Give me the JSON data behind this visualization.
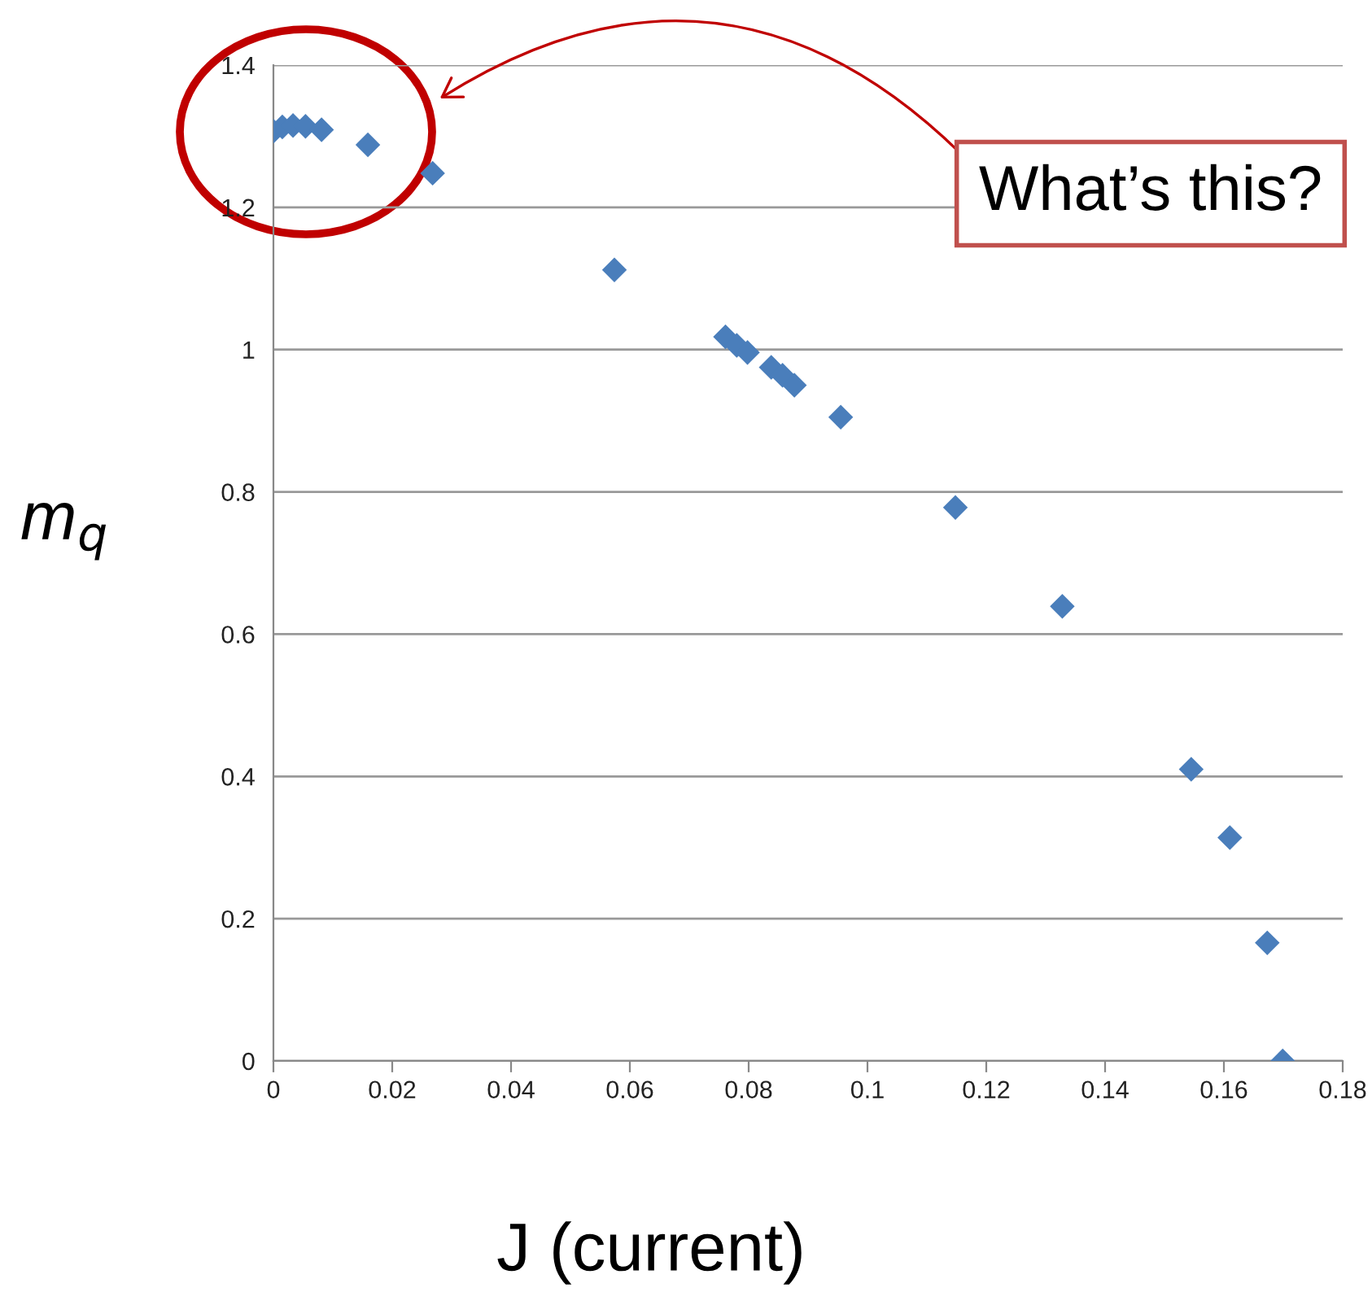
{
  "chart_data": {
    "type": "scatter",
    "xlabel": "J (current)",
    "ylabel": "m$_{q}$",
    "annotations": [
      "What’s this?"
    ],
    "x": [
      0,
      0.0015,
      0.0033,
      0.0054,
      0.0081,
      0.0159,
      0.0268,
      0.0574,
      0.0761,
      0.078,
      0.0798,
      0.0838,
      0.0857,
      0.0877,
      0.0955,
      0.1148,
      0.1328,
      0.1545,
      0.161,
      0.1673,
      0.1699
    ],
    "values": [
      1.307,
      1.313,
      1.315,
      1.314,
      1.309,
      1.288,
      1.248,
      1.112,
      1.018,
      1.006,
      0.996,
      0.975,
      0.964,
      0.95,
      0.905,
      0.778,
      0.639,
      0.41,
      0.314,
      0.166,
      0
    ],
    "color": "#4a7ebb",
    "marker": "diamond",
    "xlim": [
      0,
      0.18
    ],
    "xticks": [
      0,
      0.02,
      0.04,
      0.06,
      0.08,
      0.1,
      0.12,
      0.14,
      0.16,
      0.18
    ],
    "ylim": [
      0,
      1.4
    ],
    "yticks": [
      0,
      0.2,
      0.4,
      0.6,
      0.8,
      1,
      1.2,
      1.4
    ],
    "grid": "y"
  }
}
